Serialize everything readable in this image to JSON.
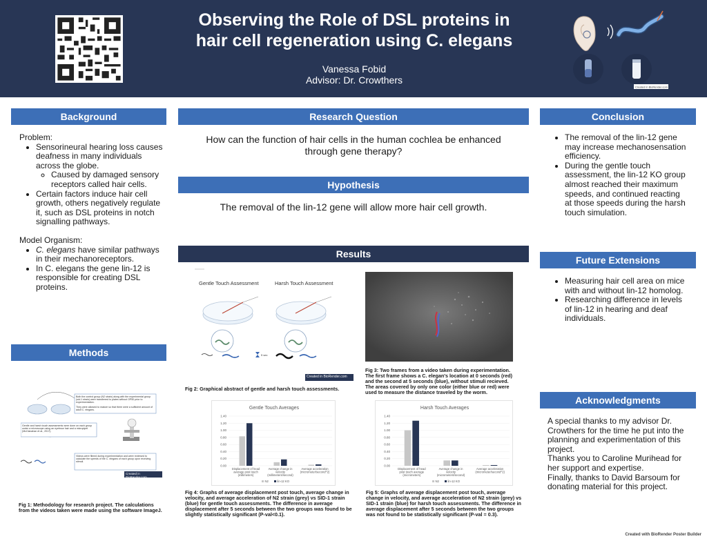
{
  "header": {
    "title_line1": "Observing the Role of DSL proteins in",
    "title_line2": "hair cell regeneration using C. elegans",
    "author": "Vanessa Fobid",
    "advisor": "Advisor: Dr. Crowthers"
  },
  "background": {
    "heading": "Background",
    "problem_label": "Problem:",
    "problem_items": [
      "Sensorineural hearing loss causes deafness in many individuals  across the globe.",
      "Certain factors induce hair cell growth, others negatively regulate it, such as DSL proteins in notch signalling pathways."
    ],
    "problem_subitem": "Caused by damaged sensory receptors called hair cells.",
    "model_label": "Model Organism:",
    "model_items": [
      "C. elegans have similar pathways in their mechanoreceptors.",
      "In C. elegans the gene lin-12 is responsible for creating DSL proteins."
    ]
  },
  "methods": {
    "heading": "Methods",
    "box1": "Both the control group (N2 strain) along with the experimental group (sid-1 strain) were transferred to plates without OP50 prior to experimentation.",
    "box1b": "They were allowed to mature so that there were a sufficient amount of adult C. elegans.",
    "box2": "Gentle and harsh touch assessments were done on each group under a microscope using an eyebrow hair and a micropipet (McClanahan et al., 2017).",
    "box3": "Videos were filmed during experimentation and were reviewed to calculate the speeds of the C. elegans of each group upon receiving stimuli.",
    "credit": "Created in BioRender.com",
    "caption": "Fig 1: Methodology for research project. The calculations from the videos taken were made using the software ImageJ."
  },
  "research_question": {
    "heading": "Research Question",
    "text_line1": "How can  the function of hair cells in  the human cochlea  be  enhanced",
    "text_line2": "through gene  therapy?"
  },
  "hypothesis": {
    "heading": "Hypothesis",
    "text": "The removal of the lin-12 gene will allow more hair cell growth."
  },
  "results": {
    "heading": "Results",
    "fig2_label_gentle": "Gentle Touch Assessment",
    "fig2_label_harsh": "Harsh Touch Assessment",
    "fig2_time": "5 sec",
    "fig2_credit": "Created in BioRender.com",
    "fig2_caption": "Fig 2: Graphical abstract of gentle and harsh touch assessments.",
    "fig3_caption": "Fig 3: Two frames from a video taken during experimentation. The first frame shows a C. elegan's location at 0 seconds (red) and the second at 5 seconds (blue), without stimuli recieved. The areas covered by only one color (either blue or red) were used to measure the distance traveled by the worm.",
    "fig4_caption": "Fig 4: Graphs of average displacement post touch, average change in velocity, and average acceleration of N2 strain (grey) vs SID-1 strain (blue) for gentle touch assessments. The difference in average displacement after 5 seconds between the two groups was found to be slightly statistically significant (P-val<0.1).",
    "fig5_caption": "Fig 5: Graphs of average displacement post touch, average change in velocity, and average acceleration of N2 strain (grey) vs SID-1 strain (blue) for harsh touch assessments. The difference in average displacement after 5 seconds between the two groups was not found to be statistically significant (P-val = 0.3)."
  },
  "chart_data": [
    {
      "type": "bar",
      "title": "Gentle Touch Averages",
      "categories": [
        "Displacement of head average post touch (millimeters)",
        "Average change in velocity (millimeters/second)",
        "Average acceleration (micrometer/second^2)"
      ],
      "series": [
        {
          "name": "N2",
          "values": [
            0.83,
            0.1,
            0.03
          ],
          "color": "#c7c7c7"
        },
        {
          "name": "lin-12 KO",
          "values": [
            1.2,
            0.18,
            0.04
          ],
          "color": "#283655"
        }
      ],
      "yticks": [
        "0.00",
        "0.20",
        "0.40",
        "0.60",
        "0.80",
        "1.00",
        "1.20",
        "1.40"
      ],
      "ylim": [
        0,
        1.4
      ],
      "legend_position": "bottom"
    },
    {
      "type": "bar",
      "title": "Harsh Touch Averages",
      "categories": [
        "Displacement of head post touch average (micrometers)",
        "Average change in velocity (micrometers/second)",
        "Average acceleration (micrometer/second^2)"
      ],
      "series": [
        {
          "name": "N2",
          "values": [
            1.0,
            0.15,
            0.02
          ],
          "color": "#c7c7c7"
        },
        {
          "name": "lin-12 KO",
          "values": [
            1.27,
            0.15,
            0.02
          ],
          "color": "#283655"
        }
      ],
      "yticks": [
        "0.00",
        "0.20",
        "0.40",
        "0.60",
        "0.80",
        "1.00",
        "1.20",
        "1.40"
      ],
      "ylim": [
        0,
        1.4
      ],
      "legend_position": "bottom"
    }
  ],
  "conclusion": {
    "heading": "Conclusion",
    "items": [
      "The removal of the lin-12 gene may increase mechanosensation efficiency.",
      "During the gentle touch assessment,  the lin-12 KO group almost reached their maximum speeds, and continued reacting at those speeds during the harsh touch simulation."
    ]
  },
  "future": {
    "heading": "Future Extensions",
    "items": [
      "Measuring hair cell area on mice with and without lin-12 homolog.",
      "Researching difference in levels of lin-12 in hearing and deaf individuals."
    ]
  },
  "acknowledgments": {
    "heading": "Acknowledgments",
    "lines": [
      "A special thanks to my advisor Dr. Crowthers for the time he put into the planning and experimentation of this project.",
      "Thanks you to Caroline Murihead for her support and expertise.",
      "Finally, thanks to David Barsoum for donating material for this project."
    ]
  },
  "footer": "Created with BioRender Poster Builder",
  "logo_credit": "Created in BioRender.com"
}
